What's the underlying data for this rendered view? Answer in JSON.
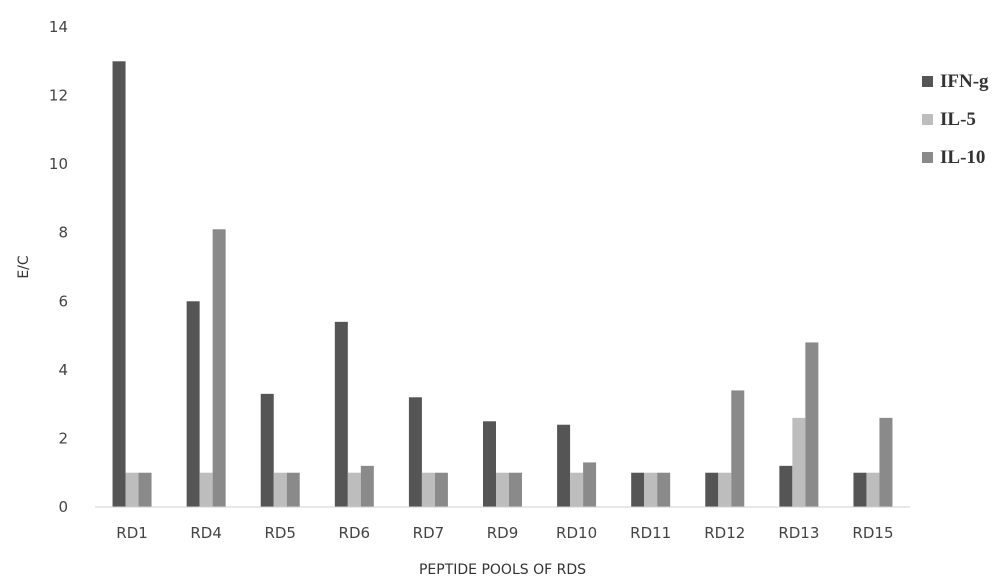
{
  "chart_data": {
    "type": "bar",
    "title": "",
    "xlabel": "PEPTIDE POOLS OF RDS",
    "ylabel": "E/C",
    "ylim": [
      0,
      14
    ],
    "yticks": [
      0,
      2,
      4,
      6,
      8,
      10,
      12,
      14
    ],
    "grid": false,
    "legend_position": "right",
    "categories": [
      "RD1",
      "RD4",
      "RD5",
      "RD6",
      "RD7",
      "RD9",
      "RD10",
      "RD11",
      "RD12",
      "RD13",
      "RD15"
    ],
    "series": [
      {
        "name": "IFN-g",
        "color": "#555555",
        "values": [
          13,
          6,
          3.3,
          5.4,
          3.2,
          2.5,
          2.4,
          1,
          1,
          1.2,
          1
        ]
      },
      {
        "name": "IL-5",
        "color": "#bdbdbd",
        "values": [
          1,
          1,
          1,
          1,
          1,
          1,
          1,
          1,
          1,
          2.6,
          1
        ]
      },
      {
        "name": "IL-10",
        "color": "#8a8a8a",
        "values": [
          1,
          8.1,
          1,
          1.2,
          1,
          1,
          1.3,
          1,
          3.4,
          4.8,
          2.6
        ]
      }
    ]
  }
}
